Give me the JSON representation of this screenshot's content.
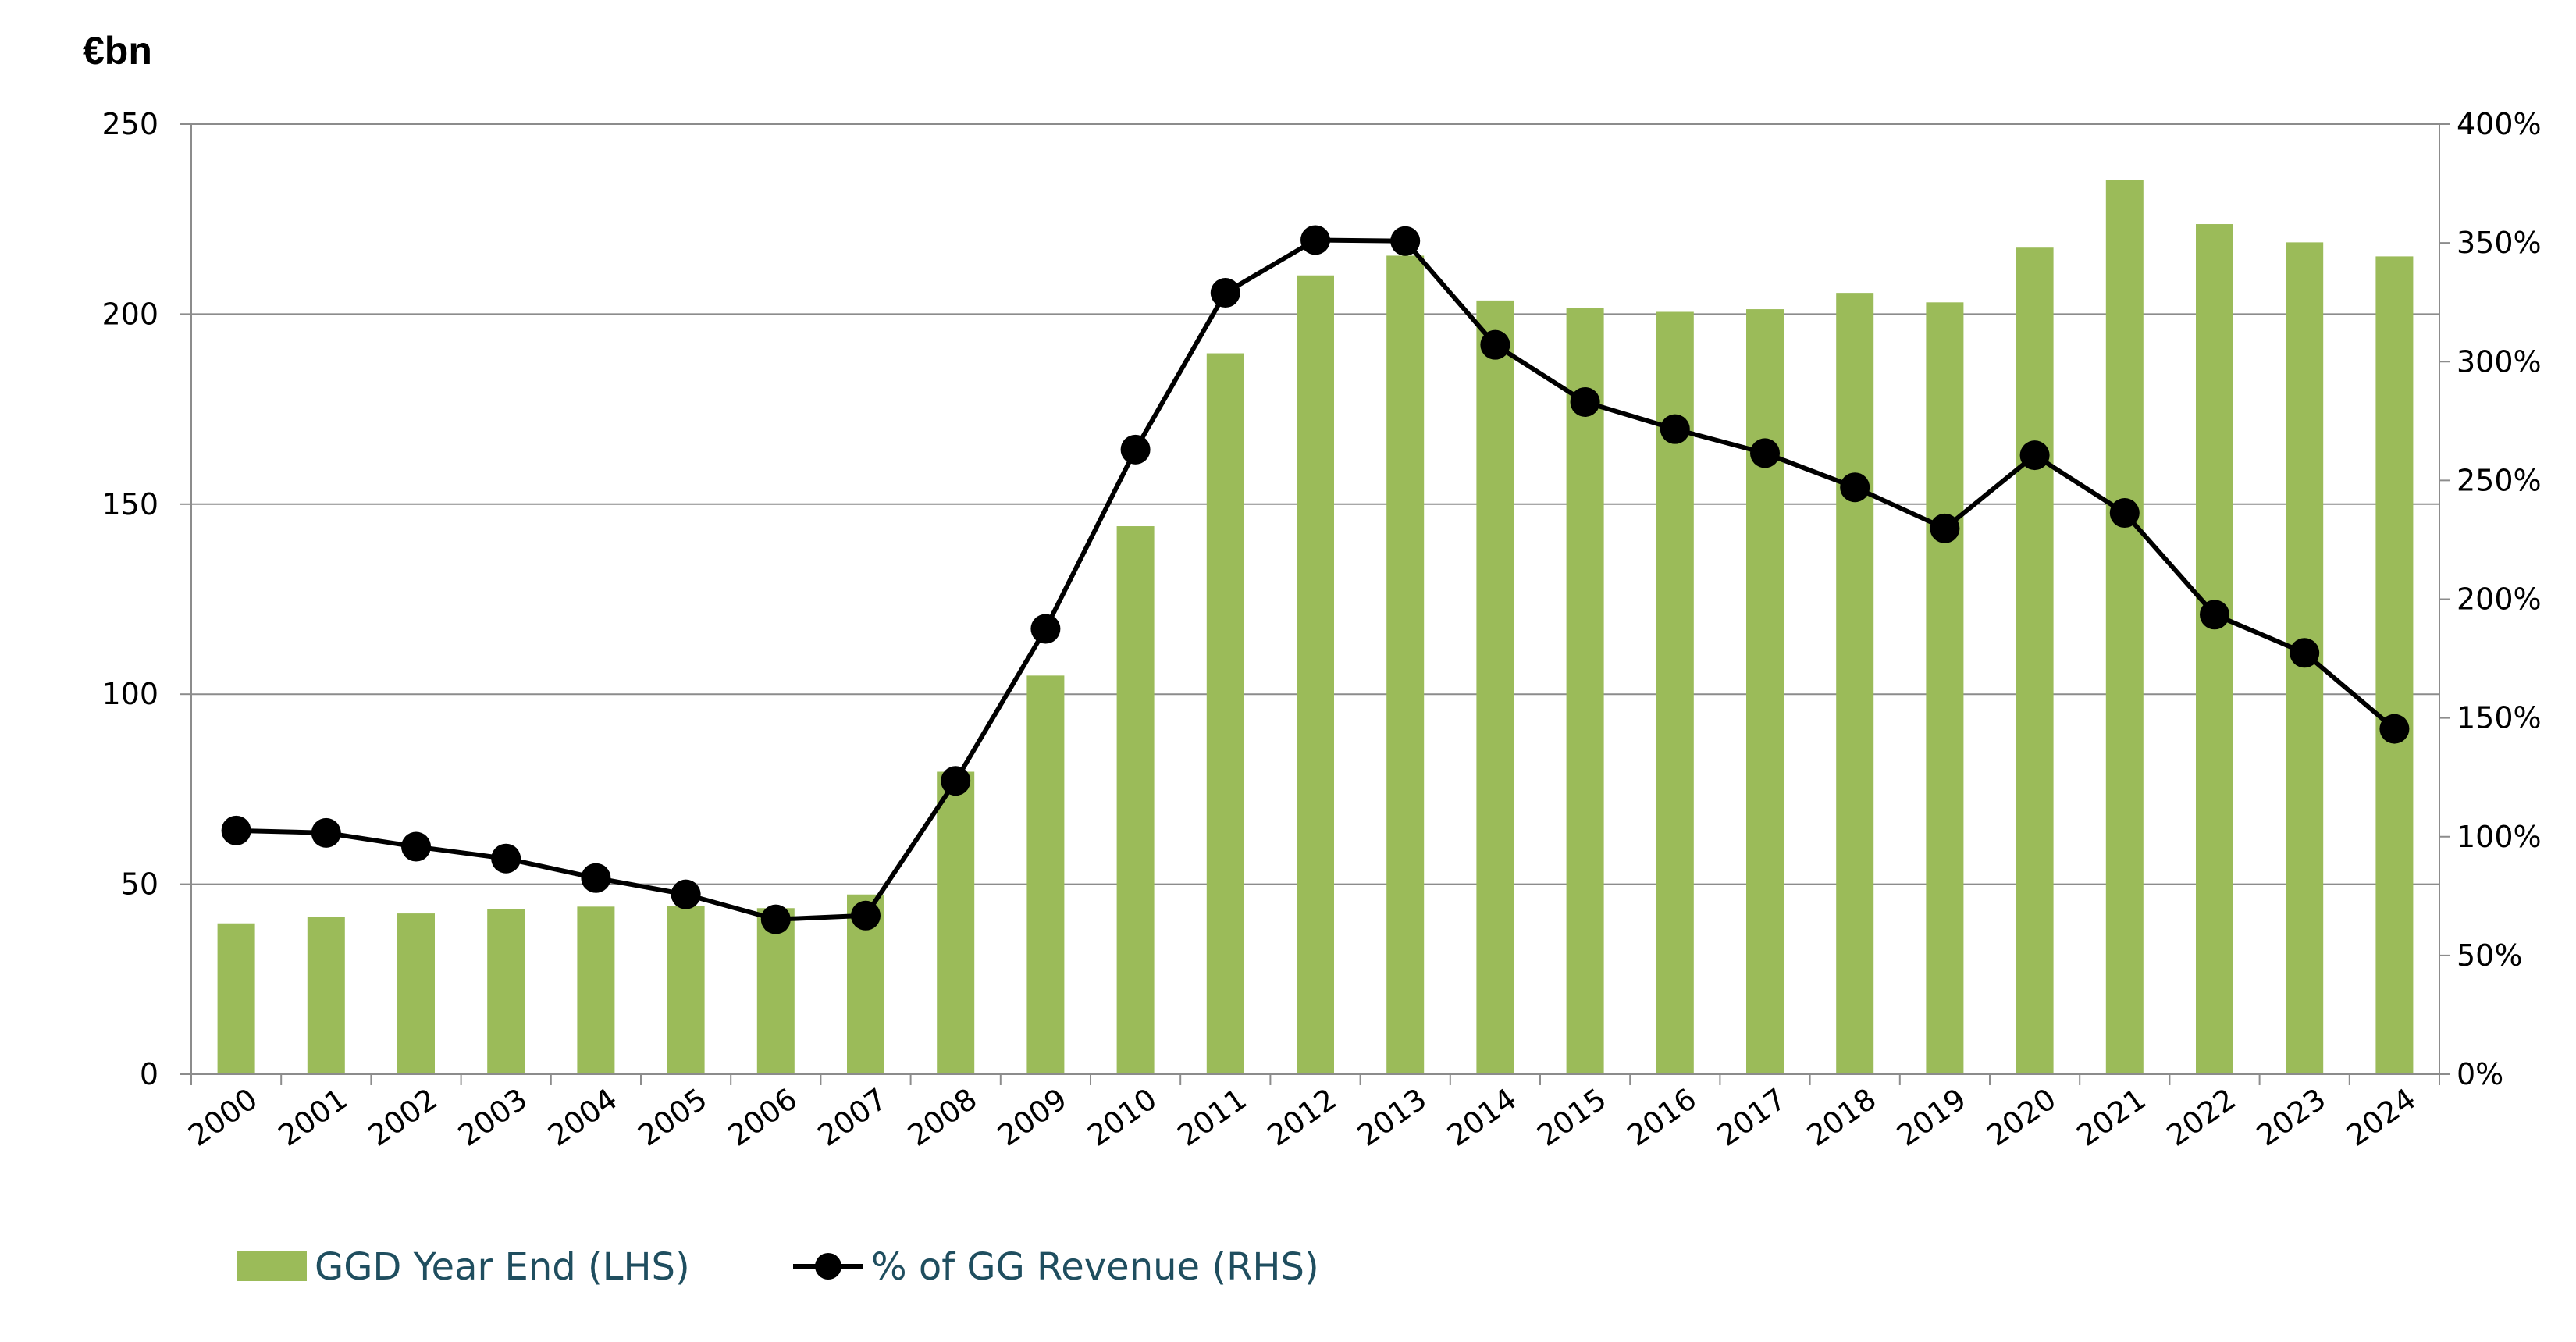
{
  "chart_data": {
    "type": "bar",
    "y_unit_label": "€bn",
    "categories": [
      "2000",
      "2001",
      "2002",
      "2003",
      "2004",
      "2005",
      "2006",
      "2007",
      "2008",
      "2009",
      "2010",
      "2011",
      "2012",
      "2013",
      "2014",
      "2015",
      "2016",
      "2017",
      "2018",
      "2019",
      "2020",
      "2021",
      "2022",
      "2023",
      "2024"
    ],
    "series": [
      {
        "name": "GGD Year End (LHS)",
        "type": "bar",
        "axis": "left",
        "color": "#9bbb59",
        "values": [
          39.7,
          41.3,
          42.3,
          43.5,
          44.1,
          44.2,
          43.7,
          47.3,
          79.6,
          104.9,
          144.2,
          189.7,
          210.2,
          215.4,
          203.6,
          201.6,
          200.6,
          201.3,
          205.6,
          203.1,
          217.5,
          235.4,
          223.7,
          218.9,
          215.2
        ]
      },
      {
        "name": "% of GG Revenue (RHS)",
        "type": "line",
        "axis": "right",
        "color": "#000000",
        "values": [
          102.6,
          101.6,
          95.8,
          90.8,
          82.6,
          75.7,
          65.2,
          66.8,
          123.5,
          187.5,
          263.0,
          329.0,
          351.2,
          350.8,
          307.1,
          283.0,
          271.6,
          261.5,
          247.1,
          229.8,
          260.6,
          236.3,
          193.5,
          177.4,
          145.4
        ]
      }
    ],
    "left_axis": {
      "ticks": [
        "0",
        "50",
        "100",
        "150",
        "200",
        "250"
      ],
      "ylim": [
        0,
        250
      ]
    },
    "right_axis": {
      "ticks": [
        "0%",
        "50%",
        "100%",
        "150%",
        "200%",
        "250%",
        "300%",
        "350%",
        "400%"
      ],
      "ylim": [
        0,
        400
      ]
    },
    "grid": true,
    "legend_position": "bottom-left"
  }
}
